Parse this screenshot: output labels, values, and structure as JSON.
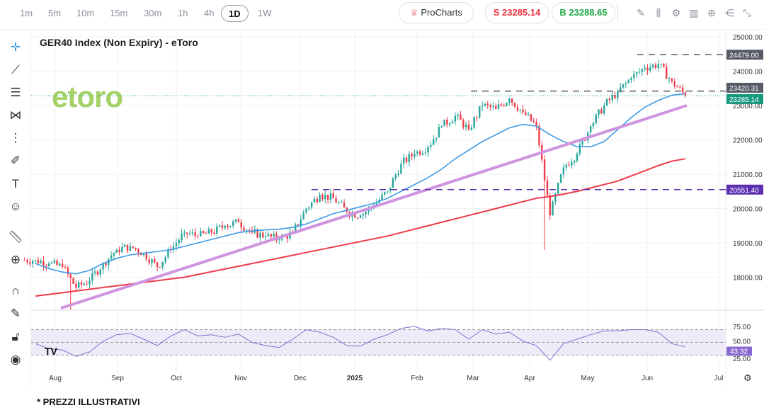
{
  "toolbar": {
    "timeframes": [
      "1m",
      "5m",
      "10m",
      "15m",
      "30m",
      "1h",
      "4h",
      "1D",
      "1W"
    ],
    "active": "1D",
    "procharts": "ProCharts",
    "sell": "S 23285.14",
    "buy": "B 23288.65"
  },
  "chart": {
    "title": "GER40 Index (Non Expiry) - eToro",
    "watermark": "etoro"
  },
  "footer": "* PREZZI ILLUSTRATIVI",
  "colors": {
    "up": "#26a69a",
    "down": "#ef3b4a",
    "ma50": "#3f9be6",
    "ma200": "#ef3b4a",
    "trend": "#cf94e0",
    "rsi": "#8470d0",
    "sell": "#e8323c",
    "buy": "#1ea84a"
  },
  "chart_data": {
    "type": "candlestick",
    "x_labels": [
      "Aug",
      "Sep",
      "Oct",
      "Nov",
      "Dec",
      "2025",
      "Feb",
      "Mar",
      "Apr",
      "May",
      "Jun",
      "Jul"
    ],
    "y_ticks": [
      "25000.00",
      "24000.00",
      "23000.00",
      "22000.00",
      "21000.00",
      "20000.00",
      "19000.00",
      "18000.00"
    ],
    "ylim": [
      17000,
      25300
    ],
    "weekly_close": [
      18500,
      18400,
      18300,
      17700,
      17900,
      18400,
      18800,
      18900,
      18700,
      18300,
      18800,
      19300,
      19200,
      19300,
      19500,
      19600,
      19300,
      19200,
      19100,
      19300,
      20000,
      20400,
      20300,
      19900,
      19800,
      20100,
      20500,
      21300,
      21600,
      21800,
      22400,
      22700,
      22300,
      23000,
      22900,
      23200,
      22800,
      22400,
      19800,
      21200,
      21600,
      22400,
      23000,
      23400,
      23800,
      24100,
      24200,
      23700,
      23285
    ],
    "weekly_low_extremes": {
      "3": 17050,
      "38": 18800
    },
    "ma50": [
      18400,
      18250,
      18150,
      18100,
      18200,
      18400,
      18550,
      18650,
      18700,
      18750,
      18800,
      18900,
      19000,
      19100,
      19200,
      19300,
      19350,
      19380,
      19400,
      19450,
      19550,
      19700,
      19850,
      19950,
      20050,
      20150,
      20300,
      20500,
      20700,
      20900,
      21150,
      21450,
      21700,
      21950,
      22150,
      22350,
      22450,
      22400,
      22150,
      21950,
      21800,
      21800,
      21950,
      22300,
      22650,
      22950,
      23150,
      23300,
      23350
    ],
    "ma200": [
      17450,
      17500,
      17550,
      17600,
      17650,
      17700,
      17750,
      17800,
      17850,
      17900,
      17950,
      18000,
      18080,
      18160,
      18240,
      18320,
      18400,
      18480,
      18560,
      18640,
      18720,
      18800,
      18880,
      18960,
      19040,
      19120,
      19200,
      19300,
      19400,
      19500,
      19600,
      19700,
      19800,
      19900,
      20000,
      20100,
      20200,
      20300,
      20350,
      20420,
      20500,
      20600,
      20700,
      20800,
      20950,
      21100,
      21250,
      21380,
      21450
    ],
    "trendline": {
      "from": 17100,
      "to": 23000
    },
    "levels": [
      {
        "value": "24479.00",
        "color": "#555a66"
      },
      {
        "value": "23420.31",
        "color": "#555a66"
      },
      {
        "value": "20551.40",
        "color": "#5b2fb0"
      }
    ],
    "last_price": "23285.14",
    "rsi": {
      "ticks": [
        "75.00",
        "50.00",
        "25.00"
      ],
      "last": "43.32",
      "values": [
        48,
        40,
        38,
        28,
        35,
        52,
        62,
        64,
        55,
        45,
        60,
        70,
        60,
        62,
        58,
        63,
        50,
        45,
        42,
        55,
        70,
        66,
        58,
        45,
        44,
        55,
        62,
        72,
        75,
        68,
        72,
        70,
        55,
        70,
        63,
        66,
        52,
        45,
        22,
        48,
        55,
        62,
        68,
        68,
        70,
        70,
        66,
        48,
        43
      ]
    }
  }
}
